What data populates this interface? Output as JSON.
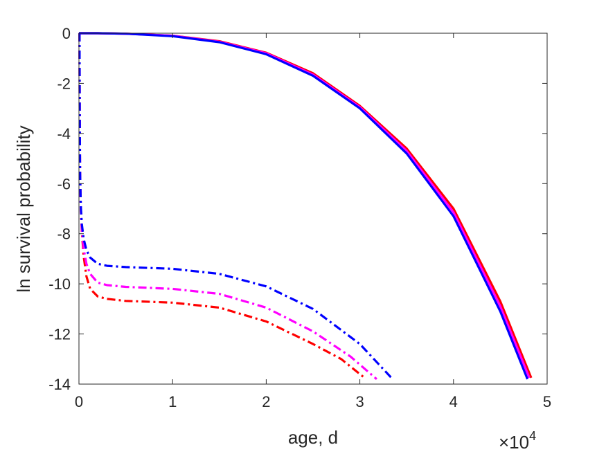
{
  "chart_data": {
    "type": "line",
    "xlabel": "age, d",
    "ylabel": "ln survival probability",
    "x_exponent_label": {
      "base": "×10",
      "power": "4"
    },
    "xlim": [
      0,
      50000
    ],
    "ylim": [
      -14,
      0
    ],
    "xticks": [
      0,
      10000,
      20000,
      30000,
      40000,
      50000
    ],
    "xtick_labels": [
      "0",
      "1",
      "2",
      "3",
      "4",
      "5"
    ],
    "yticks": [
      0,
      -2,
      -4,
      -6,
      -8,
      -10,
      -12,
      -14
    ],
    "ytick_labels": [
      "0",
      "-2",
      "-4",
      "-6",
      "-8",
      "-10",
      "-12",
      "-14"
    ],
    "grid": false,
    "box": true,
    "series": [
      {
        "color": "#ff0000",
        "style": "solid",
        "width": 3.2,
        "x": [
          0,
          2000,
          5000,
          10000,
          15000,
          20000,
          25000,
          30000,
          35000,
          40000,
          45000,
          48300
        ],
        "y": [
          0,
          0,
          -0.02,
          -0.1,
          -0.32,
          -0.78,
          -1.6,
          -2.9,
          -4.6,
          -7.0,
          -10.7,
          -13.75
        ]
      },
      {
        "color": "#ff00ff",
        "style": "solid",
        "width": 3.2,
        "x": [
          0,
          2000,
          5000,
          10000,
          15000,
          20000,
          25000,
          30000,
          35000,
          40000,
          45000,
          48100
        ],
        "y": [
          0,
          0,
          -0.02,
          -0.1,
          -0.34,
          -0.8,
          -1.65,
          -2.95,
          -4.7,
          -7.15,
          -10.9,
          -13.75
        ]
      },
      {
        "color": "#0000ff",
        "style": "solid",
        "width": 3.2,
        "x": [
          0,
          2000,
          5000,
          10000,
          15000,
          20000,
          25000,
          30000,
          35000,
          40000,
          45000,
          47900
        ],
        "y": [
          0,
          0,
          -0.02,
          -0.12,
          -0.36,
          -0.84,
          -1.7,
          -3.0,
          -4.8,
          -7.3,
          -11.1,
          -13.8
        ]
      },
      {
        "color": "#ff0000",
        "style": "dashdot",
        "width": 3.2,
        "x": [
          60,
          80,
          120,
          200,
          300,
          500,
          800,
          1200,
          2000,
          3000,
          5000,
          10000,
          15000,
          20000,
          25000,
          28000,
          30500
        ],
        "y": [
          0,
          -3.0,
          -5.5,
          -7.0,
          -7.9,
          -8.9,
          -9.7,
          -10.2,
          -10.5,
          -10.6,
          -10.68,
          -10.75,
          -10.95,
          -11.5,
          -12.4,
          -13.0,
          -13.75
        ]
      },
      {
        "color": "#ff00ff",
        "style": "dashdot",
        "width": 3.2,
        "x": [
          60,
          80,
          120,
          200,
          300,
          500,
          800,
          1200,
          2000,
          3000,
          5000,
          10000,
          15000,
          20000,
          25000,
          29000,
          31800
        ],
        "y": [
          0,
          -3.0,
          -5.5,
          -7.0,
          -7.8,
          -8.6,
          -9.2,
          -9.6,
          -9.95,
          -10.05,
          -10.12,
          -10.2,
          -10.4,
          -10.95,
          -11.9,
          -12.9,
          -13.8
        ]
      },
      {
        "color": "#0000ff",
        "style": "dashdot",
        "width": 3.2,
        "x": [
          60,
          80,
          120,
          200,
          300,
          500,
          800,
          1200,
          2000,
          3000,
          5000,
          10000,
          15000,
          20000,
          25000,
          30000,
          33500
        ],
        "y": [
          0,
          -3.0,
          -5.5,
          -6.9,
          -7.6,
          -8.2,
          -8.65,
          -8.95,
          -9.2,
          -9.28,
          -9.33,
          -9.4,
          -9.6,
          -10.1,
          -11.0,
          -12.4,
          -13.8
        ]
      }
    ]
  }
}
